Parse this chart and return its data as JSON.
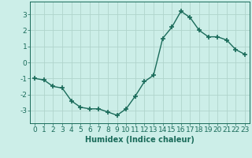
{
  "x": [
    0,
    1,
    2,
    3,
    4,
    5,
    6,
    7,
    8,
    9,
    10,
    11,
    12,
    13,
    14,
    15,
    16,
    17,
    18,
    19,
    20,
    21,
    22,
    23
  ],
  "y": [
    -1.0,
    -1.1,
    -1.5,
    -1.6,
    -2.4,
    -2.8,
    -2.9,
    -2.9,
    -3.1,
    -3.3,
    -2.9,
    -2.1,
    -1.2,
    -0.8,
    1.5,
    2.2,
    3.2,
    2.8,
    2.0,
    1.6,
    1.6,
    1.4,
    0.8,
    0.5
  ],
  "line_color": "#1a6b5a",
  "marker": "+",
  "marker_size": 4,
  "linewidth": 1.0,
  "bg_color": "#cceee8",
  "grid_color": "#b0d4cc",
  "xlabel": "Humidex (Indice chaleur)",
  "xlim": [
    -0.5,
    23.5
  ],
  "ylim": [
    -3.8,
    3.8
  ],
  "yticks": [
    -3,
    -2,
    -1,
    0,
    1,
    2,
    3
  ],
  "xticks": [
    0,
    1,
    2,
    3,
    4,
    5,
    6,
    7,
    8,
    9,
    10,
    11,
    12,
    13,
    14,
    15,
    16,
    17,
    18,
    19,
    20,
    21,
    22,
    23
  ],
  "xlabel_fontsize": 7,
  "tick_fontsize": 6.5
}
